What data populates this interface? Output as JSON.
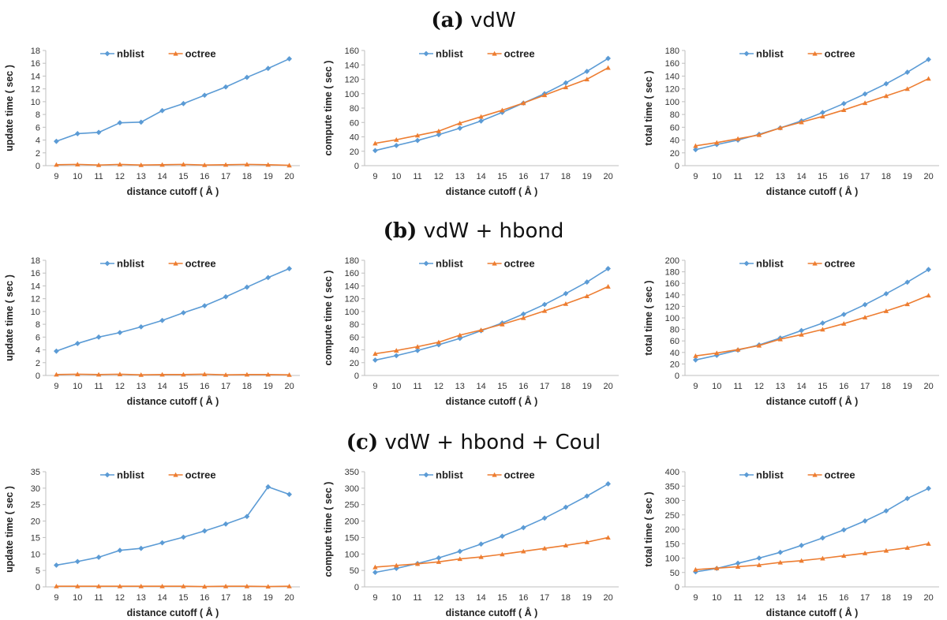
{
  "rows": [
    {
      "label": "(a)",
      "title": "vdW"
    },
    {
      "label": "(b)",
      "title": "vdW + hbond"
    },
    {
      "label": "(c)",
      "title": "vdW + hbond + Coul"
    }
  ],
  "colors": {
    "nblist": "#5b9bd5",
    "octree": "#ed7d31",
    "axis": "#bfbfbf"
  },
  "chart_data": [
    {
      "type": "line",
      "row": 0,
      "col": 0,
      "xlabel": "distance cutoff ( Å )",
      "ylabel": "update time ( sec )",
      "x": [
        9,
        10,
        11,
        12,
        13,
        14,
        15,
        16,
        17,
        18,
        19,
        20
      ],
      "ylim": [
        0,
        18
      ],
      "yticks": [
        0,
        2,
        4,
        6,
        8,
        10,
        12,
        14,
        16,
        18
      ],
      "grid": false,
      "legend": "top-center",
      "series": [
        {
          "name": "nblist",
          "values": [
            3.8,
            5.0,
            5.2,
            6.7,
            6.8,
            8.6,
            9.7,
            11.0,
            12.3,
            13.8,
            15.2,
            16.7
          ]
        },
        {
          "name": "octree",
          "values": [
            0.15,
            0.2,
            0.1,
            0.2,
            0.1,
            0.15,
            0.2,
            0.1,
            0.15,
            0.2,
            0.15,
            0.05
          ]
        }
      ]
    },
    {
      "type": "line",
      "row": 0,
      "col": 1,
      "xlabel": "distance cutoff ( Å )",
      "ylabel": "compute time ( sec )",
      "x": [
        9,
        10,
        11,
        12,
        13,
        14,
        15,
        16,
        17,
        18,
        19,
        20
      ],
      "ylim": [
        0,
        160
      ],
      "yticks": [
        0,
        20,
        40,
        60,
        80,
        100,
        120,
        140,
        160
      ],
      "grid": false,
      "legend": "top-center",
      "series": [
        {
          "name": "nblist",
          "values": [
            21,
            28,
            35,
            43,
            52,
            62,
            74,
            87,
            100,
            115,
            131,
            149
          ]
        },
        {
          "name": "octree",
          "values": [
            31,
            36,
            42,
            48,
            59,
            68,
            77,
            87,
            98,
            109,
            120,
            136
          ]
        }
      ]
    },
    {
      "type": "line",
      "row": 0,
      "col": 2,
      "xlabel": "distance cutoff ( Å )",
      "ylabel": "total time ( sec )",
      "x": [
        9,
        10,
        11,
        12,
        13,
        14,
        15,
        16,
        17,
        18,
        19,
        20
      ],
      "ylim": [
        0,
        180
      ],
      "yticks": [
        0,
        20,
        40,
        60,
        80,
        100,
        120,
        140,
        160,
        180
      ],
      "grid": false,
      "legend": "top-center",
      "series": [
        {
          "name": "nblist",
          "values": [
            25,
            33,
            40,
            49,
            59,
            70,
            83,
            97,
            112,
            128,
            146,
            166
          ]
        },
        {
          "name": "octree",
          "values": [
            31,
            36,
            42,
            48,
            59,
            68,
            77,
            87,
            98,
            109,
            120,
            136
          ]
        }
      ]
    },
    {
      "type": "line",
      "row": 1,
      "col": 0,
      "xlabel": "distance cutoff ( Å )",
      "ylabel": "update time ( sec )",
      "x": [
        9,
        10,
        11,
        12,
        13,
        14,
        15,
        16,
        17,
        18,
        19,
        20
      ],
      "ylim": [
        0,
        18
      ],
      "yticks": [
        0,
        2,
        4,
        6,
        8,
        10,
        12,
        14,
        16,
        18
      ],
      "grid": false,
      "legend": "top-center",
      "series": [
        {
          "name": "nblist",
          "values": [
            3.8,
            5.0,
            6.0,
            6.7,
            7.6,
            8.6,
            9.8,
            10.9,
            12.3,
            13.8,
            15.3,
            16.7
          ]
        },
        {
          "name": "octree",
          "values": [
            0.15,
            0.2,
            0.15,
            0.2,
            0.1,
            0.15,
            0.15,
            0.2,
            0.1,
            0.15,
            0.15,
            0.1
          ]
        }
      ]
    },
    {
      "type": "line",
      "row": 1,
      "col": 1,
      "xlabel": "distance cutoff ( Å )",
      "ylabel": "compute time ( sec )",
      "x": [
        9,
        10,
        11,
        12,
        13,
        14,
        15,
        16,
        17,
        18,
        19,
        20
      ],
      "ylim": [
        0,
        180
      ],
      "yticks": [
        0,
        20,
        40,
        60,
        80,
        100,
        120,
        140,
        160,
        180
      ],
      "grid": false,
      "legend": "top-center",
      "series": [
        {
          "name": "nblist",
          "values": [
            24,
            31,
            39,
            48,
            58,
            70,
            82,
            96,
            111,
            128,
            146,
            167
          ]
        },
        {
          "name": "octree",
          "values": [
            34,
            39,
            45,
            52,
            63,
            71,
            80,
            90,
            101,
            112,
            124,
            139
          ]
        }
      ]
    },
    {
      "type": "line",
      "row": 1,
      "col": 2,
      "xlabel": "distance cutoff ( Å )",
      "ylabel": "total time ( sec )",
      "x": [
        9,
        10,
        11,
        12,
        13,
        14,
        15,
        16,
        17,
        18,
        19,
        20
      ],
      "ylim": [
        0,
        200
      ],
      "yticks": [
        0,
        20,
        40,
        60,
        80,
        100,
        120,
        140,
        160,
        180,
        200
      ],
      "grid": false,
      "legend": "top-center",
      "series": [
        {
          "name": "nblist",
          "values": [
            27,
            35,
            44,
            53,
            65,
            78,
            91,
            106,
            123,
            142,
            162,
            184
          ]
        },
        {
          "name": "octree",
          "values": [
            34,
            39,
            45,
            52,
            63,
            71,
            80,
            90,
            101,
            112,
            124,
            139
          ]
        }
      ]
    },
    {
      "type": "line",
      "row": 2,
      "col": 0,
      "xlabel": "distance cutoff ( Å )",
      "ylabel": "update time ( sec )",
      "x": [
        9,
        10,
        11,
        12,
        13,
        14,
        15,
        16,
        17,
        18,
        19,
        20
      ],
      "ylim": [
        0,
        35
      ],
      "yticks": [
        0,
        5,
        10,
        15,
        20,
        25,
        30,
        35
      ],
      "grid": false,
      "legend": "top-center",
      "series": [
        {
          "name": "nblist",
          "values": [
            6.6,
            7.7,
            9.0,
            11.1,
            11.7,
            13.4,
            15.1,
            17.0,
            19.1,
            21.4,
            30.4,
            28.1
          ]
        },
        {
          "name": "octree",
          "values": [
            0.2,
            0.2,
            0.2,
            0.2,
            0.2,
            0.2,
            0.2,
            0.1,
            0.2,
            0.2,
            0.1,
            0.2
          ]
        }
      ]
    },
    {
      "type": "line",
      "row": 2,
      "col": 1,
      "xlabel": "distance cutoff ( Å )",
      "ylabel": "compute time ( sec )",
      "x": [
        9,
        10,
        11,
        12,
        13,
        14,
        15,
        16,
        17,
        18,
        19,
        20
      ],
      "ylim": [
        0,
        350
      ],
      "yticks": [
        0,
        50,
        100,
        150,
        200,
        250,
        300,
        350
      ],
      "grid": false,
      "legend": "top-center",
      "series": [
        {
          "name": "nblist",
          "values": [
            44,
            56,
            71,
            88,
            108,
            130,
            154,
            180,
            209,
            242,
            276,
            313
          ]
        },
        {
          "name": "octree",
          "values": [
            60,
            65,
            70,
            76,
            85,
            91,
            99,
            108,
            117,
            126,
            136,
            150
          ]
        }
      ]
    },
    {
      "type": "line",
      "row": 2,
      "col": 2,
      "xlabel": "distance cutoff ( Å )",
      "ylabel": "total time ( sec )",
      "x": [
        9,
        10,
        11,
        12,
        13,
        14,
        15,
        16,
        17,
        18,
        19,
        20
      ],
      "ylim": [
        0,
        400
      ],
      "yticks": [
        0,
        50,
        100,
        150,
        200,
        250,
        300,
        350,
        400
      ],
      "grid": false,
      "legend": "top-center",
      "series": [
        {
          "name": "nblist",
          "values": [
            52,
            64,
            82,
            100,
            120,
            144,
            170,
            198,
            229,
            264,
            307,
            342
          ]
        },
        {
          "name": "octree",
          "values": [
            60,
            65,
            70,
            76,
            85,
            91,
            99,
            108,
            117,
            126,
            136,
            150
          ]
        }
      ]
    }
  ]
}
